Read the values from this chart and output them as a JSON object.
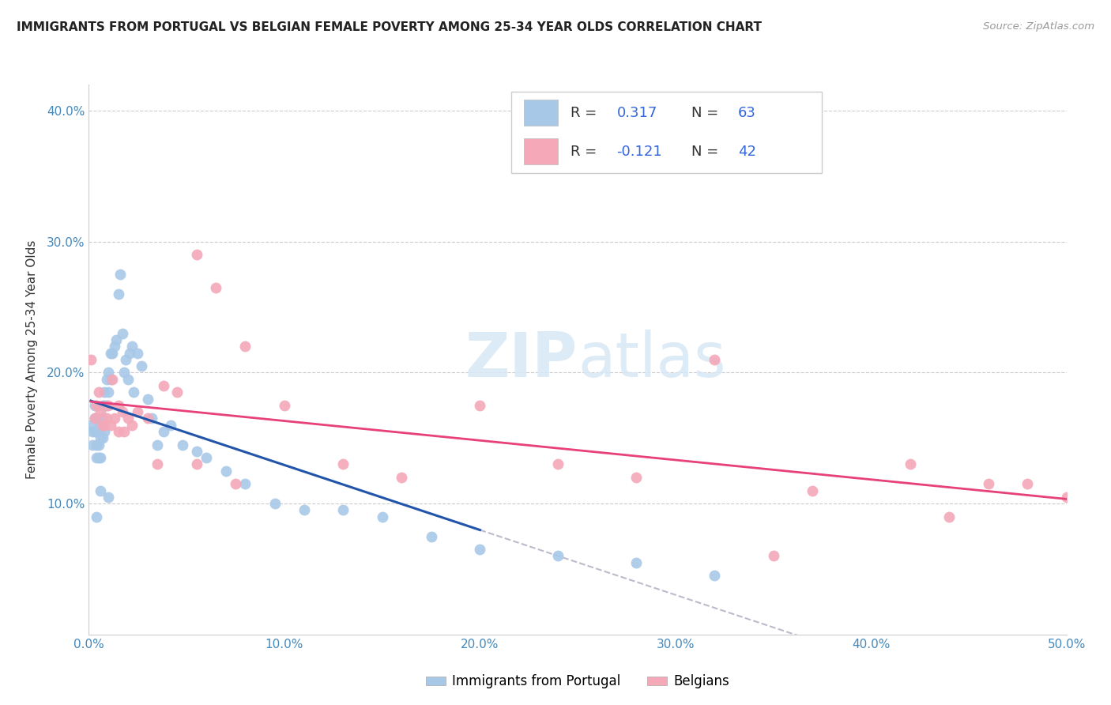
{
  "title": "IMMIGRANTS FROM PORTUGAL VS BELGIAN FEMALE POVERTY AMONG 25-34 YEAR OLDS CORRELATION CHART",
  "source": "Source: ZipAtlas.com",
  "ylabel": "Female Poverty Among 25-34 Year Olds",
  "xlim": [
    0,
    0.5
  ],
  "ylim": [
    0,
    0.42
  ],
  "xticks": [
    0.0,
    0.1,
    0.2,
    0.3,
    0.4,
    0.5
  ],
  "yticks": [
    0.1,
    0.2,
    0.3,
    0.4
  ],
  "xticklabels": [
    "0.0%",
    "10.0%",
    "20.0%",
    "30.0%",
    "40.0%",
    "50.0%"
  ],
  "yticklabels": [
    "10.0%",
    "20.0%",
    "30.0%",
    "40.0%"
  ],
  "blue_R": "0.317",
  "blue_N": "63",
  "pink_R": "-0.121",
  "pink_N": "42",
  "blue_color": "#A8C8E8",
  "pink_color": "#F4A8B8",
  "blue_line_color": "#2255AA",
  "pink_line_color": "#E8407A",
  "dashed_line_color": "#BBBBCC",
  "legend_label_blue": "Immigrants from Portugal",
  "legend_label_pink": "Belgians",
  "blue_x": [
    0.001,
    0.002,
    0.002,
    0.003,
    0.003,
    0.003,
    0.004,
    0.004,
    0.004,
    0.005,
    0.005,
    0.005,
    0.006,
    0.006,
    0.006,
    0.007,
    0.007,
    0.007,
    0.008,
    0.008,
    0.008,
    0.009,
    0.009,
    0.01,
    0.01,
    0.011,
    0.011,
    0.012,
    0.013,
    0.014,
    0.015,
    0.016,
    0.017,
    0.018,
    0.019,
    0.02,
    0.021,
    0.022,
    0.023,
    0.025,
    0.027,
    0.03,
    0.032,
    0.035,
    0.038,
    0.042,
    0.048,
    0.055,
    0.06,
    0.07,
    0.08,
    0.095,
    0.11,
    0.13,
    0.15,
    0.175,
    0.2,
    0.24,
    0.28,
    0.32,
    0.01,
    0.006,
    0.004
  ],
  "blue_y": [
    0.16,
    0.155,
    0.145,
    0.175,
    0.165,
    0.155,
    0.165,
    0.145,
    0.135,
    0.155,
    0.145,
    0.135,
    0.16,
    0.15,
    0.135,
    0.175,
    0.165,
    0.15,
    0.185,
    0.175,
    0.155,
    0.195,
    0.175,
    0.2,
    0.185,
    0.215,
    0.195,
    0.215,
    0.22,
    0.225,
    0.26,
    0.275,
    0.23,
    0.2,
    0.21,
    0.195,
    0.215,
    0.22,
    0.185,
    0.215,
    0.205,
    0.18,
    0.165,
    0.145,
    0.155,
    0.16,
    0.145,
    0.14,
    0.135,
    0.125,
    0.115,
    0.1,
    0.095,
    0.095,
    0.09,
    0.075,
    0.065,
    0.06,
    0.055,
    0.045,
    0.105,
    0.11,
    0.09
  ],
  "pink_x": [
    0.001,
    0.003,
    0.004,
    0.005,
    0.006,
    0.007,
    0.008,
    0.009,
    0.01,
    0.011,
    0.013,
    0.015,
    0.017,
    0.02,
    0.022,
    0.025,
    0.03,
    0.038,
    0.045,
    0.055,
    0.065,
    0.08,
    0.1,
    0.13,
    0.16,
    0.2,
    0.24,
    0.28,
    0.32,
    0.37,
    0.42,
    0.46,
    0.48,
    0.5,
    0.015,
    0.018,
    0.012,
    0.035,
    0.055,
    0.075,
    0.35,
    0.44
  ],
  "pink_y": [
    0.21,
    0.165,
    0.175,
    0.185,
    0.17,
    0.16,
    0.16,
    0.165,
    0.175,
    0.16,
    0.165,
    0.175,
    0.17,
    0.165,
    0.16,
    0.17,
    0.165,
    0.19,
    0.185,
    0.29,
    0.265,
    0.22,
    0.175,
    0.13,
    0.12,
    0.175,
    0.13,
    0.12,
    0.21,
    0.11,
    0.13,
    0.115,
    0.115,
    0.105,
    0.155,
    0.155,
    0.195,
    0.13,
    0.13,
    0.115,
    0.06,
    0.09
  ]
}
